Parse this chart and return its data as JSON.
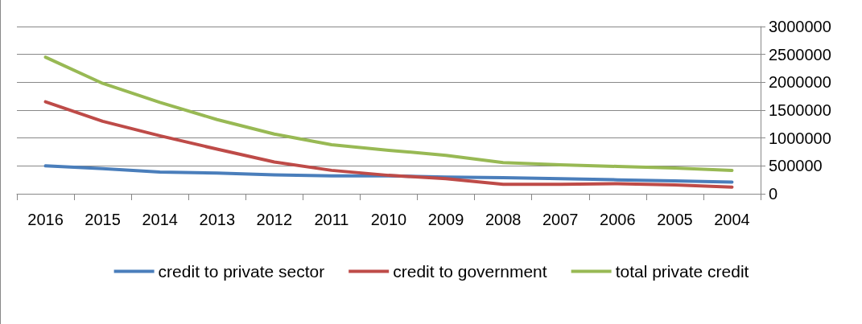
{
  "chart_data": {
    "type": "line",
    "categories": [
      "2016",
      "2015",
      "2014",
      "2013",
      "2012",
      "2011",
      "2010",
      "2009",
      "2008",
      "2007",
      "2006",
      "2005",
      "2004"
    ],
    "series": [
      {
        "name": "credit to private sector",
        "color": "#4a7ebb",
        "values": [
          500000,
          450000,
          390000,
          370000,
          340000,
          320000,
          320000,
          300000,
          290000,
          270000,
          250000,
          230000,
          210000
        ]
      },
      {
        "name": "credit to government",
        "color": "#be4b48",
        "values": [
          1650000,
          1300000,
          1040000,
          800000,
          570000,
          420000,
          330000,
          270000,
          170000,
          170000,
          180000,
          160000,
          120000
        ]
      },
      {
        "name": "total private credit",
        "color": "#98b954",
        "values": [
          2450000,
          1980000,
          1640000,
          1330000,
          1070000,
          880000,
          780000,
          690000,
          560000,
          520000,
          490000,
          460000,
          420000
        ]
      }
    ],
    "ylim": [
      0,
      3000000
    ],
    "yticks": [
      0,
      500000,
      1000000,
      1500000,
      2000000,
      2500000,
      3000000
    ],
    "grid": "y",
    "legend": "bottom",
    "marker": "none",
    "line_style": "solid"
  }
}
